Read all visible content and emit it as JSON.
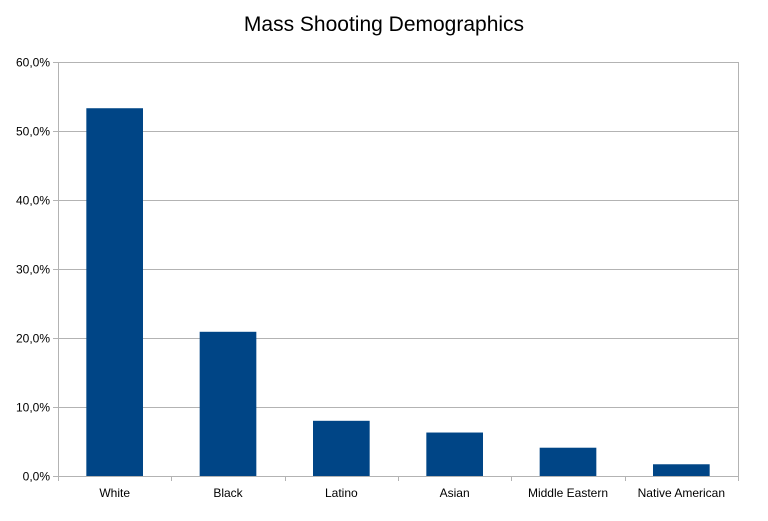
{
  "chart_data": {
    "type": "bar",
    "title": "Mass Shooting Demographics",
    "xlabel": "",
    "ylabel": "",
    "categories": [
      "White",
      "Black",
      "Latino",
      "Asian",
      "Middle Eastern",
      "Native American"
    ],
    "values": [
      53.3,
      20.9,
      8.0,
      6.3,
      4.1,
      1.7
    ],
    "ylim": [
      0,
      60
    ],
    "yticks": [
      0,
      10,
      20,
      30,
      40,
      50,
      60
    ],
    "ytick_labels": [
      "0,0%",
      "10,0%",
      "20,0%",
      "30,0%",
      "40,0%",
      "50,0%",
      "60,0%"
    ],
    "grid": true,
    "legend": "none",
    "bar_color": "#004586",
    "grid_color": "#b3b3b3"
  }
}
